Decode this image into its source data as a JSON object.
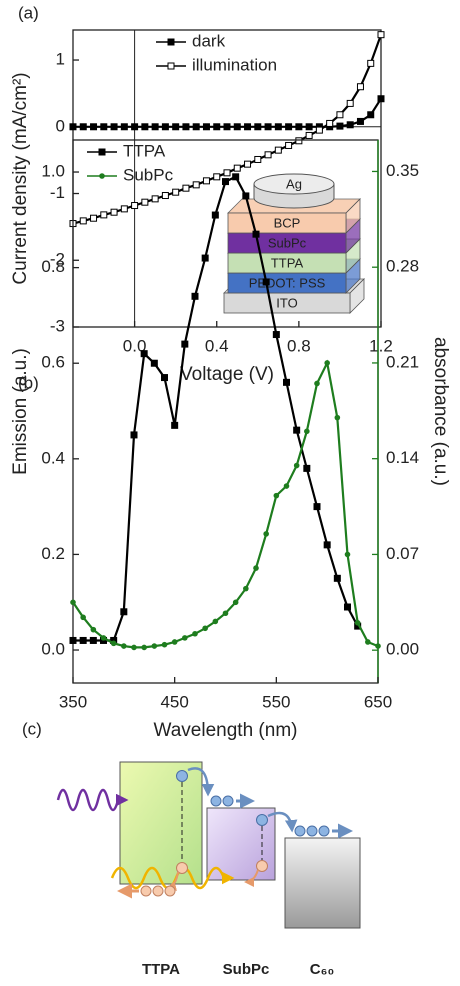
{
  "chart_data": [
    {
      "type": "line",
      "panel_label": "(a)",
      "x_label": "Voltage (V)",
      "y_label": "Current density (mA/cm²)",
      "xlim": [
        -0.3,
        1.2
      ],
      "ylim": [
        -3,
        1.45
      ],
      "xticks": [
        {
          "value": 0,
          "label": "0.0"
        },
        0.4,
        0.8,
        1.2
      ],
      "yticks": [
        -3,
        -2,
        -1,
        0,
        1
      ],
      "legend": "upper right",
      "x": [
        -0.3,
        -0.25,
        -0.2,
        -0.15,
        -0.1,
        -0.05,
        0,
        0.05,
        0.1,
        0.15,
        0.2,
        0.25,
        0.3,
        0.35,
        0.4,
        0.45,
        0.5,
        0.55,
        0.6,
        0.65,
        0.7,
        0.75,
        0.8,
        0.85,
        0.9,
        0.95,
        1.0,
        1.05,
        1.1,
        1.15,
        1.2
      ],
      "series": [
        {
          "name": "dark",
          "color": "#000000",
          "marker": "square-filled",
          "values": [
            0,
            0,
            0,
            0,
            0,
            0,
            0,
            0,
            0,
            0,
            0,
            0,
            0,
            0,
            0,
            0,
            0,
            0,
            0,
            0,
            0,
            0,
            0,
            0,
            0,
            0,
            0.01,
            0.03,
            0.08,
            0.18,
            0.42
          ]
        },
        {
          "name": "illumination",
          "color": "#000000",
          "marker": "square-open",
          "values": [
            -1.45,
            -1.41,
            -1.37,
            -1.32,
            -1.28,
            -1.23,
            -1.18,
            -1.13,
            -1.08,
            -1.03,
            -0.98,
            -0.92,
            -0.87,
            -0.81,
            -0.75,
            -0.69,
            -0.62,
            -0.56,
            -0.49,
            -0.42,
            -0.35,
            -0.28,
            -0.21,
            -0.13,
            -0.05,
            0.05,
            0.18,
            0.35,
            0.6,
            0.95,
            1.38
          ]
        }
      ],
      "inset_layers": [
        "Ag",
        "BCP",
        "SubPc",
        "TTPA",
        "PEDOT: PSS",
        "ITO"
      ]
    },
    {
      "type": "line",
      "panel_label": "(b)",
      "x_label": "Wavelength (nm)",
      "y_label": "Emission (a.u.)",
      "y2_label": "absorbance (a.u.)",
      "y2_color": "#1e7d1e",
      "xlim": [
        350,
        650
      ],
      "ylim": [
        -0.069,
        1.067
      ],
      "y2lim": [
        -0.024,
        0.373
      ],
      "xticks": [
        350,
        450,
        550,
        650
      ],
      "yticks": [
        {
          "value": 0,
          "label": "0.0"
        },
        0.2,
        0.4,
        0.6,
        0.8,
        {
          "value": 1,
          "label": "1.0"
        }
      ],
      "y2ticks": [
        {
          "value": 0,
          "label": "0.00"
        },
        0.07,
        0.14,
        0.21,
        0.28,
        0.35
      ],
      "legend": "upper left",
      "x": [
        350,
        360,
        370,
        380,
        390,
        400,
        410,
        420,
        430,
        440,
        450,
        460,
        470,
        480,
        490,
        500,
        510,
        520,
        530,
        540,
        550,
        560,
        570,
        580,
        590,
        600,
        610,
        620,
        630,
        640,
        650
      ],
      "series": [
        {
          "name": "TTPA",
          "color": "#000000",
          "marker": "square-filled",
          "values": [
            0.02,
            0.02,
            0.02,
            0.02,
            0.02,
            0.08,
            0.45,
            0.62,
            0.6,
            0.57,
            0.47,
            0.64,
            0.74,
            0.82,
            0.91,
            0.98,
            0.99,
            0.95,
            0.87,
            0.77,
            0.66,
            0.56,
            0.46,
            0.38,
            0.3,
            0.22,
            0.15,
            0.09,
            0.05,
            null,
            null
          ]
        },
        {
          "name": "SubPc",
          "color": "#1e7d1e",
          "marker": "circle",
          "axis": "y2",
          "values": [
            0.035,
            0.024,
            0.015,
            0.009,
            0.005,
            0.003,
            0.002,
            0.002,
            0.003,
            0.004,
            0.006,
            0.009,
            0.012,
            0.016,
            0.021,
            0.027,
            0.035,
            0.045,
            0.06,
            0.085,
            0.113,
            0.12,
            0.135,
            0.16,
            0.195,
            0.21,
            0.17,
            0.07,
            0.02,
            0.006,
            0.003
          ]
        }
      ]
    }
  ],
  "diagram": {
    "panel_label": "(c)",
    "labels": [
      "TTPA",
      "SubPc",
      "C₆₀"
    ]
  }
}
